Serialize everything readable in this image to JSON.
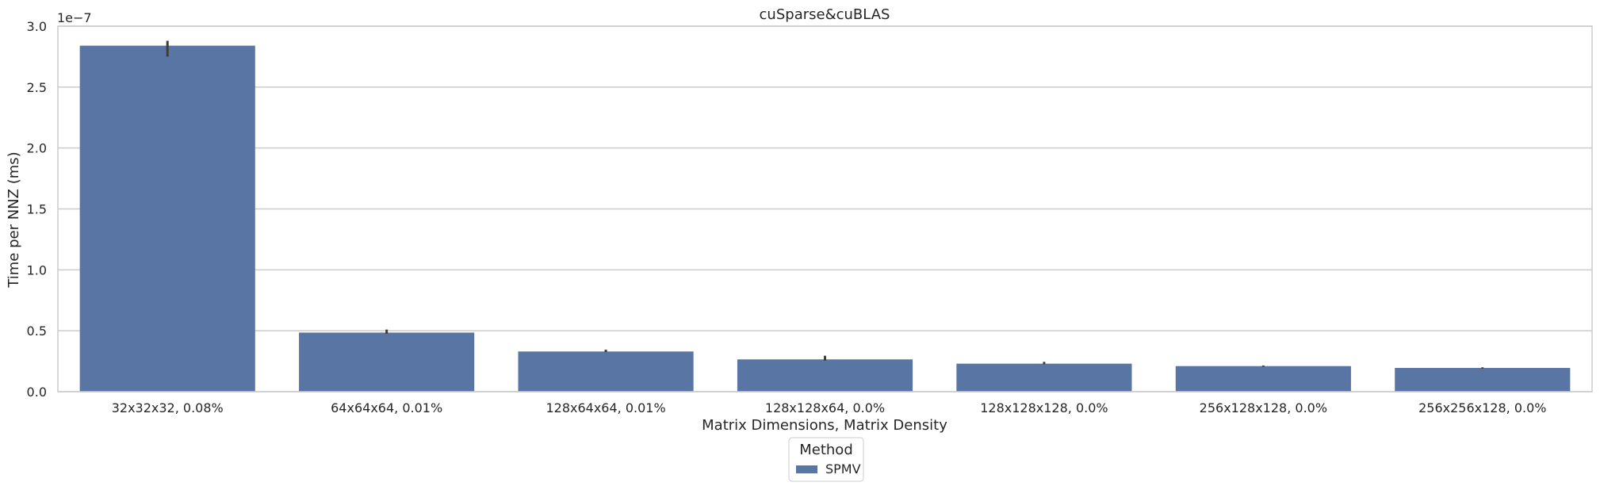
{
  "chart_data": {
    "type": "bar",
    "title": "cuSparse&cuBLAS",
    "xlabel": "Matrix Dimensions, Matrix Density",
    "ylabel": "Time per NNZ (ms)",
    "y_offset_label": "1e−7",
    "ylim": [
      0,
      3.0
    ],
    "yticks": [
      "0.0",
      "0.5",
      "1.0",
      "1.5",
      "2.0",
      "2.5",
      "3.0"
    ],
    "ytick_values": [
      0,
      0.5,
      1.0,
      1.5,
      2.0,
      2.5,
      3.0
    ],
    "grid": "horizontal",
    "categories": [
      "32x32x32, 0.08%",
      "64x64x64, 0.01%",
      "128x64x64, 0.01%",
      "128x128x64, 0.0%",
      "128x128x128, 0.0%",
      "256x128x128, 0.0%",
      "256x256x128, 0.0%"
    ],
    "series": [
      {
        "name": "SPMV",
        "color": "#5875a4",
        "values": [
          2.84,
          0.485,
          0.33,
          0.265,
          0.23,
          0.21,
          0.195
        ],
        "error_low": [
          2.75,
          0.475,
          0.325,
          0.255,
          0.225,
          0.205,
          0.19
        ],
        "error_high": [
          2.88,
          0.51,
          0.345,
          0.295,
          0.245,
          0.215,
          0.2
        ]
      }
    ],
    "legend": {
      "title": "Method",
      "placement": "bottom-center"
    }
  }
}
